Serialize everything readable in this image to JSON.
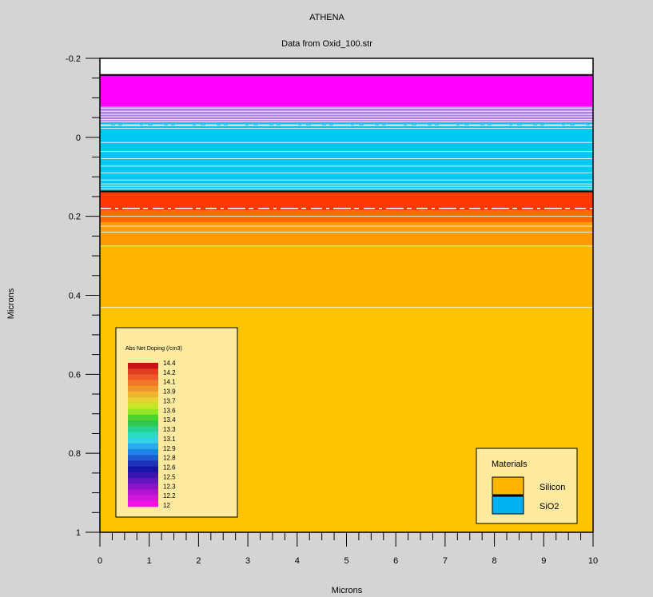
{
  "chart_data": {
    "type": "heatmap",
    "title": "ATHENA",
    "subtitle": "Data from Oxid_100.str",
    "xlabel": "Microns",
    "ylabel": "Microns",
    "xlim": [
      0,
      10
    ],
    "ylim": [
      -0.2,
      1
    ],
    "y_inverted": true,
    "x_ticks": [
      0,
      1,
      2,
      3,
      4,
      5,
      6,
      7,
      8,
      9,
      10
    ],
    "x_tick_labels": [
      "0",
      "1",
      "2",
      "3",
      "4",
      "5",
      "6",
      "7",
      "8",
      "9",
      "10"
    ],
    "y_ticks": [
      -0.2,
      0,
      0.2,
      0.4,
      0.6,
      0.8,
      1
    ],
    "y_tick_labels": [
      "-0.2",
      "0",
      "0.2",
      "0.4",
      "0.6",
      "0.8",
      "1"
    ],
    "x_minor_step": 0.25,
    "y_minor_step": 0.05,
    "layers": [
      {
        "name": "",
        "y_top": -0.2,
        "y_bottom": -0.158,
        "color": "#ffffff"
      },
      {
        "name": "",
        "y_top": -0.158,
        "y_bottom": -0.078,
        "color": "#ff00ff"
      },
      {
        "name": "",
        "y_top": -0.078,
        "y_bottom": -0.036,
        "color": "#b07fe8"
      },
      {
        "name": "SiO2",
        "y_top": -0.036,
        "y_bottom": 0.137,
        "color": "#00c8f0"
      },
      {
        "name": "Silicon",
        "y_top": 0.137,
        "y_bottom": 0.185,
        "color": "#ff3a00"
      },
      {
        "name": "Silicon",
        "y_top": 0.185,
        "y_bottom": 0.215,
        "color": "#ff6a00"
      },
      {
        "name": "Silicon",
        "y_top": 0.215,
        "y_bottom": 0.275,
        "color": "#ff9a00"
      },
      {
        "name": "Silicon",
        "y_top": 0.275,
        "y_bottom": 0.43,
        "color": "#ffb400"
      },
      {
        "name": "Silicon",
        "y_top": 0.43,
        "y_bottom": 1.0,
        "color": "#ffc400"
      }
    ],
    "layer_boundaries": [
      -0.158,
      0.137
    ],
    "contour_lines": [
      -0.074,
      -0.066,
      -0.058,
      -0.052,
      -0.045,
      -0.04,
      -0.03,
      -0.023,
      0.013,
      0.036,
      0.054,
      0.073,
      0.09,
      0.108,
      0.118,
      0.124,
      0.13,
      0.2,
      0.225,
      0.24,
      0.275,
      0.43
    ],
    "dashed_lines": [
      -0.031,
      0.18
    ],
    "doping_legend": {
      "title": "Abs Net Doping (/cm3)",
      "placement": "bottom-left",
      "levels": [
        "14.4",
        "14.2",
        "14.1",
        "13.9",
        "13.7",
        "13.6",
        "13.4",
        "13.3",
        "13.1",
        "12.9",
        "12.8",
        "12.6",
        "12.5",
        "12.3",
        "12.2",
        "12"
      ],
      "colors": [
        "#c81414",
        "#e03c1e",
        "#ec5a28",
        "#f07828",
        "#f0962c",
        "#f0b432",
        "#e6d232",
        "#c8e628",
        "#96e628",
        "#50d22d",
        "#32c850",
        "#28d28c",
        "#28dcbe",
        "#32d2e6",
        "#28aaf0",
        "#1e82e6",
        "#1e5ad2",
        "#1e32be",
        "#1414aa",
        "#3c14b4",
        "#6414be",
        "#8c14c8",
        "#b414d2",
        "#d214dc",
        "#f014e6"
      ]
    },
    "materials_legend": {
      "title": "Materials",
      "placement": "bottom-right",
      "items": [
        {
          "label": "Silicon",
          "color": "#ffb400"
        },
        {
          "label": "SiO2",
          "color": "#00b0f0"
        }
      ]
    }
  }
}
